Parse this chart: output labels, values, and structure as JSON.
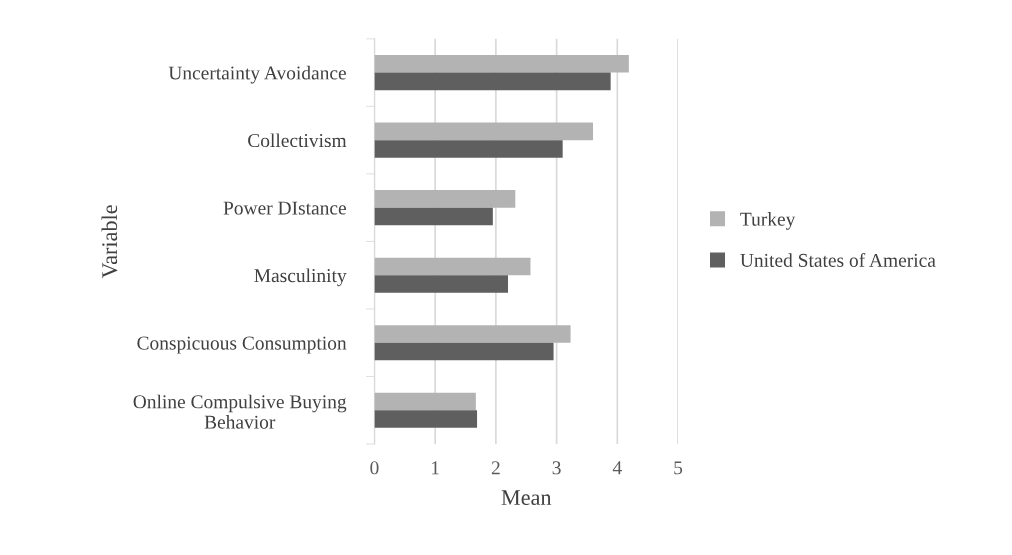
{
  "chart_data": {
    "type": "bar",
    "orientation": "horizontal",
    "xlabel": "Mean",
    "ylabel": "Variable",
    "categories": [
      "Uncertainty Avoidance",
      "Collectivism",
      "Power DIstance",
      "Masculinity",
      "Conspicuous Consumption",
      "Online Compulsive Buying\nBehavior"
    ],
    "series": [
      {
        "name": "Turkey",
        "color": "#b3b3b3",
        "values": [
          4.19,
          3.6,
          2.32,
          2.57,
          3.23,
          1.67
        ]
      },
      {
        "name": "United States of America",
        "color": "#5f5f5f",
        "values": [
          3.89,
          3.1,
          1.95,
          2.2,
          2.95,
          1.69
        ]
      }
    ],
    "xlim": [
      0,
      5
    ],
    "xticks": [
      0,
      1,
      2,
      3,
      4,
      5
    ],
    "grid": "x",
    "legend": "right"
  }
}
